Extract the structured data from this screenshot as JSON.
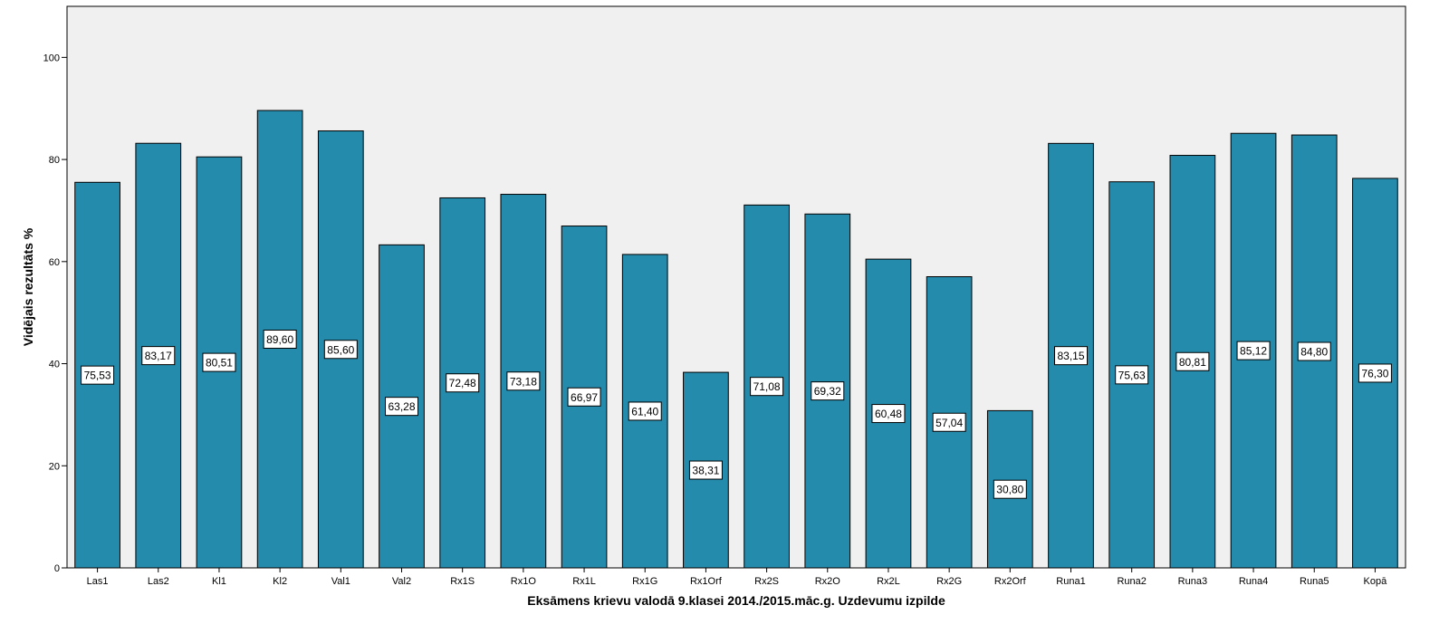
{
  "chart_data": {
    "type": "bar",
    "title": "",
    "xlabel": "Eksāmens krievu valodā 9.klasei 2014./2015.māc.g. Uzdevumu izpilde",
    "ylabel": "Vidējais rezultāts %",
    "ylim": [
      0,
      110
    ],
    "yticks": [
      0,
      20,
      40,
      60,
      80,
      100
    ],
    "grid": false,
    "legend": "none",
    "categories": [
      "Las1",
      "Las2",
      "Kl1",
      "Kl2",
      "Val1",
      "Val2",
      "Rx1S",
      "Rx1O",
      "Rx1L",
      "Rx1G",
      "Rx1Orf",
      "Rx2S",
      "Rx2O",
      "Rx2L",
      "Rx2G",
      "Rx2Orf",
      "Runa1",
      "Runa2",
      "Runa3",
      "Runa4",
      "Runa5",
      "Kopā"
    ],
    "values": [
      75.53,
      83.17,
      80.51,
      89.6,
      85.6,
      63.28,
      72.48,
      73.18,
      66.97,
      61.4,
      38.31,
      71.08,
      69.32,
      60.48,
      57.04,
      30.8,
      83.15,
      75.63,
      80.81,
      85.12,
      84.8,
      76.3
    ],
    "value_labels": [
      "75,53",
      "83,17",
      "80,51",
      "89,60",
      "85,60",
      "63,28",
      "72,48",
      "73,18",
      "66,97",
      "61,40",
      "38,31",
      "71,08",
      "69,32",
      "60,48",
      "57,04",
      "30,80",
      "83,15",
      "75,63",
      "80,81",
      "85,12",
      "84,80",
      "76,30"
    ],
    "colors": {
      "bar_fill": "#248bac",
      "bar_stroke": "#000000",
      "plot_background": "#f0f0f0"
    }
  }
}
